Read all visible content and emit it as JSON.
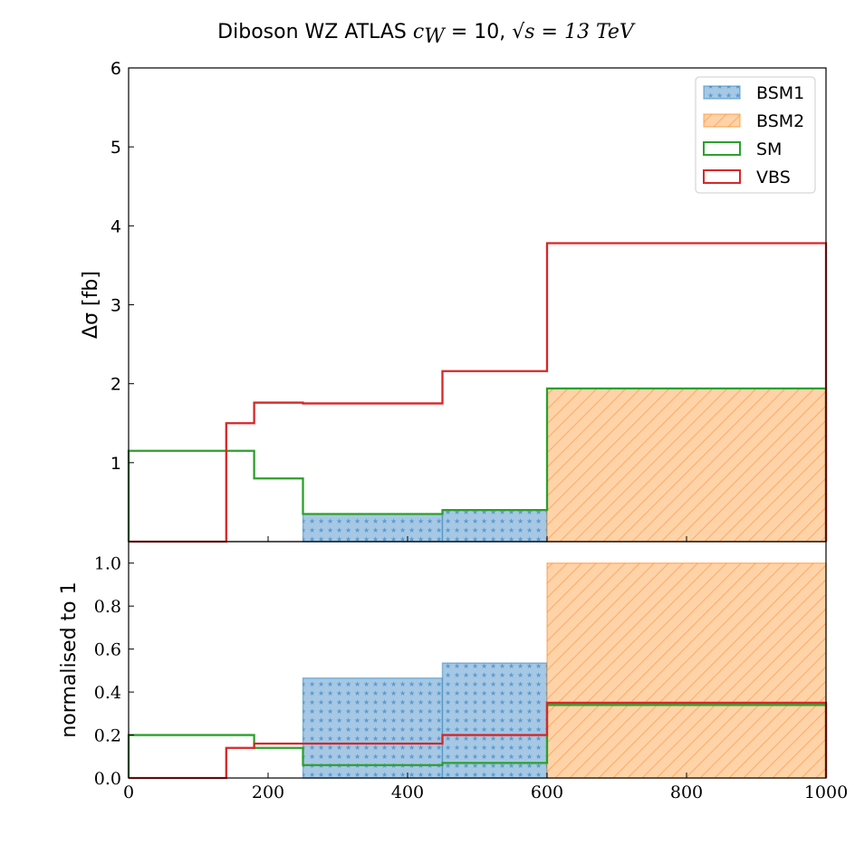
{
  "title": {
    "prefix": "Diboson  WZ ATLAS ",
    "coupling": "c",
    "coupling_sub": "W",
    "coupling_value": " = 10,  ",
    "energy": "√s = 13 TeV"
  },
  "colors": {
    "BSM1": "#1f77b4",
    "BSM2": "#ff7f0e",
    "SM": "#2ca02c",
    "VBS": "#d62728"
  },
  "chart_data": [
    {
      "type": "histogram",
      "panel": "top",
      "ylabel": "Δσ [fb]",
      "xlim": [
        0,
        1000
      ],
      "ylim": [
        0,
        6
      ],
      "yticks": [
        1,
        2,
        3,
        4,
        5,
        6
      ],
      "bin_edges": [
        0,
        140,
        180,
        250,
        450,
        600,
        1000
      ],
      "series": [
        {
          "name": "BSM1",
          "style": "filled-stars",
          "values": [
            0,
            0,
            0,
            0.35,
            0.4,
            0
          ]
        },
        {
          "name": "BSM2",
          "style": "filled-hatch",
          "values": [
            0,
            0,
            0,
            0,
            0,
            1.94
          ]
        },
        {
          "name": "SM",
          "style": "step",
          "values": [
            1.15,
            1.15,
            0.8,
            0.35,
            0.4,
            1.94
          ]
        },
        {
          "name": "VBS",
          "style": "step",
          "values": [
            0,
            1.5,
            1.76,
            1.75,
            2.16,
            3.78
          ]
        }
      ],
      "legend": {
        "position": "top-right",
        "entries": [
          "BSM1",
          "BSM2",
          "SM",
          "VBS"
        ]
      }
    },
    {
      "type": "histogram",
      "panel": "bottom",
      "ylabel": "normalised to 1",
      "xlim": [
        0,
        1000
      ],
      "ylim": [
        0,
        1.1
      ],
      "yticks": [
        "0.0",
        "0.2",
        "0.4",
        "0.6",
        "0.8",
        "1.0"
      ],
      "xticks": [
        "0",
        "200",
        "400",
        "600",
        "800",
        "1000"
      ],
      "bin_edges": [
        0,
        140,
        180,
        250,
        450,
        600,
        1000
      ],
      "series": [
        {
          "name": "BSM1",
          "style": "filled-stars",
          "values": [
            0,
            0,
            0,
            0.465,
            0.535,
            0
          ]
        },
        {
          "name": "BSM2",
          "style": "filled-hatch",
          "values": [
            0,
            0,
            0,
            0,
            0,
            1.0
          ]
        },
        {
          "name": "SM",
          "style": "step",
          "values": [
            0.2,
            0.2,
            0.14,
            0.06,
            0.07,
            0.34
          ]
        },
        {
          "name": "VBS",
          "style": "step",
          "values": [
            0,
            0.14,
            0.16,
            0.16,
            0.2,
            0.35
          ]
        }
      ]
    }
  ]
}
